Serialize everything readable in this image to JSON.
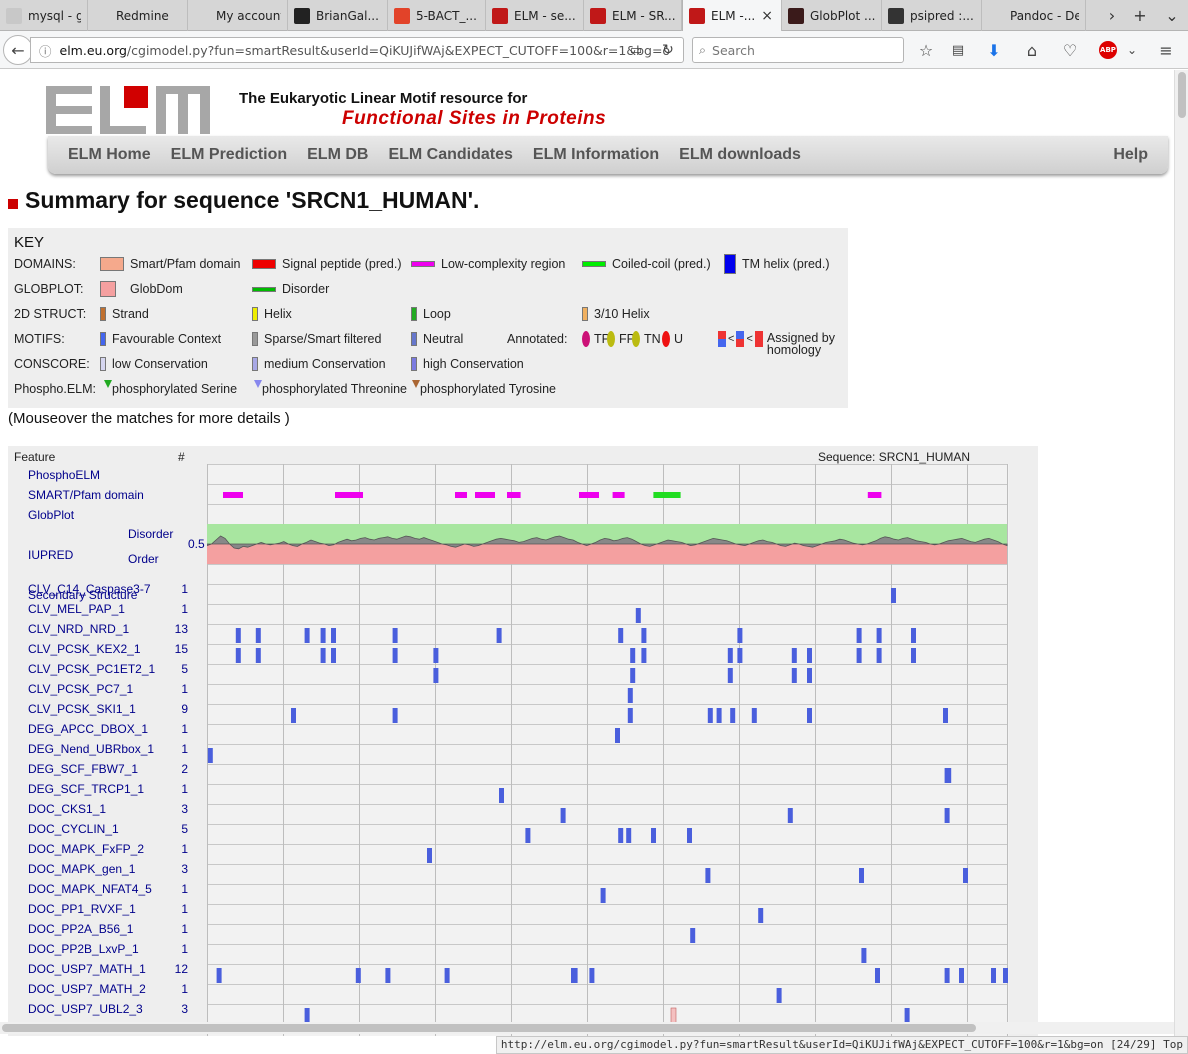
{
  "browser": {
    "tabs": [
      {
        "label": "mysql - g...",
        "fav": "#c8c8c8",
        "w": 88
      },
      {
        "label": "Redmine",
        "fav": "#d6d6d6",
        "w": 100
      },
      {
        "label": "My account -...",
        "fav": "#d6d6d6",
        "w": 100
      },
      {
        "label": "BrianGal...",
        "fav": "#222222",
        "w": 100
      },
      {
        "label": "5-BACT_...",
        "fav": "#e24329",
        "w": 98
      },
      {
        "label": "ELM - se...",
        "fav": "#c01818",
        "w": 98
      },
      {
        "label": "ELM - SR...",
        "fav": "#c01818",
        "w": 98
      },
      {
        "label": "ELM -...",
        "fav": "#c01818",
        "w": 100,
        "active": true
      },
      {
        "label": "GlobPlot ...",
        "fav": "#3a1a1a",
        "w": 100
      },
      {
        "label": "psipred :...",
        "fav": "#333333",
        "w": 100
      },
      {
        "label": "Pandoc - De...",
        "fav": "#d6d6d6",
        "w": 104
      }
    ],
    "url_prefix": "elm.eu.org",
    "url_rest": "/cgimodel.py?fun=smartResult&userId=QiKUJifWAj&EXPECT_CUTOFF=100&r=1&bg=o",
    "search_placeholder": "Search",
    "status_url": "http://elm.eu.org/cgimodel.py?fun=smartResult&userId=QiKUJifWAj&EXPECT_CUTOFF=100&r=1&bg=on [24/29] Top"
  },
  "header": {
    "tagline1": "The Eukaryotic Linear Motif resource for",
    "tagline2": "Functional Sites in Proteins"
  },
  "menu": [
    "ELM Home",
    "ELM Prediction",
    "ELM DB",
    "ELM Candidates",
    "ELM Information",
    "ELM downloads"
  ],
  "menu_help": "Help",
  "title": "Summary for sequence 'SRCN1_HUMAN'.",
  "key": {
    "title": "KEY",
    "rows": [
      {
        "label": "DOMAINS:",
        "items": [
          {
            "x": 86,
            "sw": "#f5a98c",
            "sww": 24,
            "swh": 14,
            "text": "Smart/Pfam domain"
          },
          {
            "x": 238,
            "sw": "#ee0000",
            "sww": 24,
            "swh": 10,
            "text": "Signal peptide (pred.)"
          },
          {
            "x": 397,
            "sw": "#ee00ee",
            "sww": 24,
            "swh": 6,
            "text": "Low-complexity region"
          },
          {
            "x": 568,
            "sw": "#00ee00",
            "sww": 24,
            "swh": 6,
            "text": "Coiled-coil (pred.)"
          },
          {
            "x": 710,
            "sw": "#0000ee",
            "sww": 12,
            "swh": 20,
            "text": "TM helix (pred.)"
          }
        ]
      },
      {
        "label": "GLOBPLOT:",
        "items": [
          {
            "x": 86,
            "sw": "#f5a0a0",
            "sww": 16,
            "swh": 16,
            "text": "GlobDom",
            "gap": 14
          },
          {
            "x": 238,
            "sw": "#00bb00",
            "sww": 24,
            "swh": 5,
            "text": "Disorder"
          }
        ]
      },
      {
        "label": "2D STRUCT:",
        "items": [
          {
            "x": 86,
            "sw": "#c07030",
            "sww": 6,
            "swh": 14,
            "text": "Strand"
          },
          {
            "x": 238,
            "sw": "#eeee00",
            "sww": 6,
            "swh": 14,
            "text": "Helix"
          },
          {
            "x": 397,
            "sw": "#22aa22",
            "sww": 6,
            "swh": 14,
            "text": "Loop"
          },
          {
            "x": 568,
            "sw": "#f0b060",
            "sww": 6,
            "swh": 14,
            "text": "3/10 Helix"
          }
        ]
      },
      {
        "label": "MOTIFS:",
        "items": [
          {
            "x": 86,
            "sw": "#4466ee",
            "sww": 6,
            "swh": 14,
            "text": "Favourable Context"
          },
          {
            "x": 238,
            "sw": "#999999",
            "sww": 6,
            "swh": 14,
            "text": "Sparse/Smart filtered"
          },
          {
            "x": 397,
            "sw": "#6677cc",
            "sww": 6,
            "swh": 14,
            "text": "Neutral"
          },
          {
            "x": 493,
            "text": "Annotated:"
          }
        ]
      },
      {
        "label": "CONSCORE:",
        "items": [
          {
            "x": 86,
            "sw": "#d6d6f0",
            "sww": 6,
            "swh": 14,
            "text": "low Conservation"
          },
          {
            "x": 238,
            "sw": "#a8a8e6",
            "sww": 6,
            "swh": 14,
            "text": "medium Conservation"
          },
          {
            "x": 397,
            "sw": "#7a7ae0",
            "sww": 6,
            "swh": 14,
            "text": "high Conservation"
          }
        ]
      },
      {
        "label": "Phospho.ELM:",
        "items": [
          {
            "x": 90,
            "tri": "#22aa22",
            "text": "phosphorylated Serine"
          },
          {
            "x": 240,
            "tri": "#8888ee",
            "text": "phosphorylated Threonine"
          },
          {
            "x": 398,
            "tri": "#aa6633",
            "text": "phosphorylated Tyrosine"
          }
        ]
      }
    ],
    "annotated": [
      {
        "color": "#cc1177",
        "text": "TP"
      },
      {
        "color": "#bbbb11",
        "text": "FP"
      },
      {
        "color": "#bbbb11",
        "text": "TN"
      },
      {
        "color": "#ee1111",
        "text": "U"
      }
    ],
    "homology_text1": "Assigned by",
    "homology_text2": "homology"
  },
  "mouseover_note": "(Mouseover the matches for more details )",
  "results": {
    "feature_header": "Feature",
    "count_header": "#",
    "sequence_label": "Sequence: SRCN1_HUMAN",
    "iupred_disorder": "Disorder",
    "iupred_order": "Order",
    "iupred_threshold": "0.5",
    "special_rows": [
      "PhosphoELM",
      "SMART/Pfam domain",
      "GlobPlot",
      "IUPRED",
      "Secondary Structure"
    ]
  },
  "chart_data": {
    "type": "table",
    "title": "Sequence: SRCN1_HUMAN",
    "low_complexity_regions": [
      [
        0.02,
        0.045
      ],
      [
        0.16,
        0.195
      ],
      [
        0.31,
        0.325
      ],
      [
        0.335,
        0.36
      ],
      [
        0.375,
        0.392
      ],
      [
        0.465,
        0.49
      ],
      [
        0.507,
        0.522
      ],
      [
        0.558,
        0.592
      ],
      [
        0.826,
        0.843
      ]
    ],
    "iupred_profile": [
      0.48,
      0.5,
      0.55,
      0.6,
      0.57,
      0.5,
      0.45,
      0.44,
      0.47,
      0.46,
      0.48,
      0.5,
      0.52,
      0.5,
      0.49,
      0.5,
      0.51,
      0.53,
      0.5,
      0.48,
      0.47,
      0.5,
      0.52,
      0.55,
      0.53,
      0.51,
      0.5,
      0.48,
      0.49,
      0.52,
      0.54,
      0.56,
      0.54,
      0.55,
      0.57,
      0.58,
      0.56,
      0.55,
      0.57,
      0.58,
      0.59,
      0.57,
      0.56,
      0.58,
      0.6,
      0.59,
      0.57,
      0.56,
      0.58,
      0.56,
      0.54,
      0.52,
      0.5,
      0.49,
      0.47,
      0.46,
      0.48,
      0.5,
      0.49,
      0.47,
      0.48,
      0.5,
      0.52,
      0.54,
      0.56,
      0.57,
      0.56,
      0.55,
      0.54,
      0.52,
      0.53,
      0.55,
      0.57,
      0.58,
      0.56,
      0.55,
      0.57,
      0.59,
      0.6,
      0.58,
      0.56,
      0.55,
      0.52,
      0.5,
      0.48,
      0.5,
      0.52,
      0.55,
      0.57,
      0.56,
      0.54,
      0.55,
      0.57,
      0.58,
      0.56,
      0.53,
      0.5,
      0.48,
      0.47,
      0.49,
      0.51,
      0.53,
      0.55,
      0.54,
      0.53,
      0.52,
      0.5,
      0.48,
      0.49,
      0.51,
      0.53,
      0.55,
      0.57,
      0.56,
      0.55,
      0.54,
      0.52,
      0.5,
      0.49,
      0.48,
      0.5,
      0.52,
      0.54,
      0.55,
      0.53,
      0.52,
      0.5,
      0.48,
      0.47,
      0.49,
      0.51,
      0.5,
      0.48,
      0.47,
      0.46,
      0.48,
      0.5,
      0.52,
      0.53,
      0.54,
      0.56,
      0.55,
      0.53,
      0.51,
      0.5,
      0.49,
      0.5,
      0.52,
      0.54,
      0.57,
      0.59,
      0.58,
      0.56,
      0.55,
      0.57,
      0.58,
      0.56,
      0.54,
      0.53,
      0.52,
      0.5,
      0.49,
      0.5,
      0.52,
      0.54,
      0.55,
      0.56,
      0.57,
      0.55,
      0.53,
      0.52,
      0.54,
      0.56,
      0.57,
      0.55,
      0.53,
      0.5,
      0.48
    ],
    "motifs": [
      {
        "name": "CLV_C14_Caspase3-7",
        "count": 1,
        "pos": [
          0.855
        ]
      },
      {
        "name": "CLV_MEL_PAP_1",
        "count": 1,
        "pos": [
          0.536
        ]
      },
      {
        "name": "CLV_NRD_NRD_1",
        "count": 13,
        "pos": [
          0.036,
          0.061,
          0.122,
          0.142,
          0.155,
          0.232,
          0.362,
          0.514,
          0.543,
          0.663,
          0.812,
          0.837,
          0.88
        ]
      },
      {
        "name": "CLV_PCSK_KEX2_1",
        "count": 15,
        "pos": [
          0.036,
          0.061,
          0.142,
          0.155,
          0.232,
          0.283,
          0.529,
          0.543,
          0.651,
          0.663,
          0.731,
          0.75,
          0.812,
          0.837,
          0.88
        ]
      },
      {
        "name": "CLV_PCSK_PC1ET2_1",
        "count": 5,
        "pos": [
          0.283,
          0.529,
          0.651,
          0.731,
          0.75
        ]
      },
      {
        "name": "CLV_PCSK_PC7_1",
        "count": 1,
        "pos": [
          0.526
        ]
      },
      {
        "name": "CLV_PCSK_SKI1_1",
        "count": 9,
        "pos": [
          0.105,
          0.232,
          0.526,
          0.626,
          0.637,
          0.654,
          0.681,
          0.75,
          0.92
        ]
      },
      {
        "name": "DEG_APCC_DBOX_1",
        "count": 1,
        "pos": [
          0.51
        ]
      },
      {
        "name": "DEG_Nend_UBRbox_1",
        "count": 1,
        "pos": [
          0.001
        ]
      },
      {
        "name": "DEG_SCF_FBW7_1",
        "count": 2,
        "pos": [
          0.922,
          0.924
        ]
      },
      {
        "name": "DEG_SCF_TRCP1_1",
        "count": 1,
        "pos": [
          0.365
        ]
      },
      {
        "name": "DOC_CKS1_1",
        "count": 3,
        "pos": [
          0.442,
          0.726,
          0.922
        ]
      },
      {
        "name": "DOC_CYCLIN_1",
        "count": 5,
        "pos": [
          0.398,
          0.514,
          0.524,
          0.555,
          0.6
        ]
      },
      {
        "name": "DOC_MAPK_FxFP_2",
        "count": 1,
        "pos": [
          0.275
        ]
      },
      {
        "name": "DOC_MAPK_gen_1",
        "count": 3,
        "pos": [
          0.623,
          0.815,
          0.945
        ]
      },
      {
        "name": "DOC_MAPK_NFAT4_5",
        "count": 1,
        "pos": [
          0.492
        ]
      },
      {
        "name": "DOC_PP1_RVXF_1",
        "count": 1,
        "pos": [
          0.689
        ]
      },
      {
        "name": "DOC_PP2A_B56_1",
        "count": 1,
        "pos": [
          0.604
        ]
      },
      {
        "name": "DOC_PP2B_LxvP_1",
        "count": 1,
        "pos": [
          0.818
        ]
      },
      {
        "name": "DOC_USP7_MATH_1",
        "count": 12,
        "pos": [
          0.012,
          0.186,
          0.223,
          0.297,
          0.455,
          0.457,
          0.478,
          0.835,
          0.922,
          0.94,
          0.98,
          0.995
        ]
      },
      {
        "name": "DOC_USP7_MATH_2",
        "count": 1,
        "pos": [
          0.712
        ]
      },
      {
        "name": "DOC_USP7_UBL2_3",
        "count": 3,
        "pos": [
          0.122,
          0.58,
          0.872
        ]
      }
    ]
  }
}
